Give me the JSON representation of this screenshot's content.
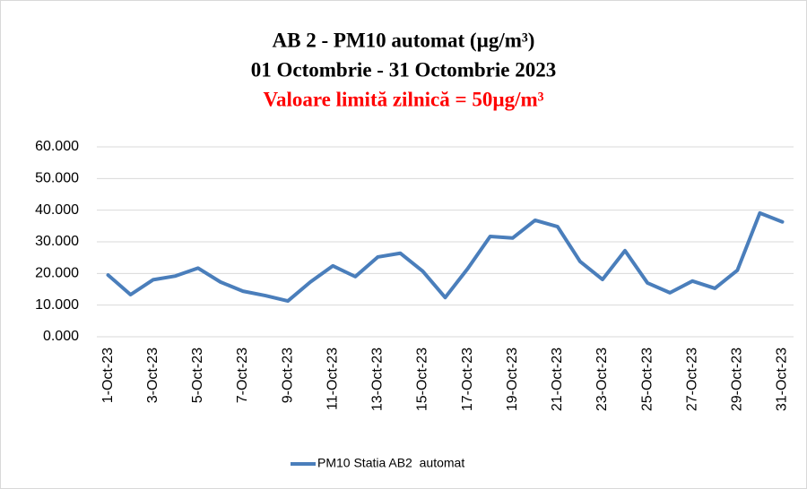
{
  "chart_data": {
    "type": "line",
    "title": [
      "AB 2 - PM10 automat  (µg/m³)",
      "01 Octombrie  - 31 Octombrie   2023"
    ],
    "subtitle": "Valoare limită zilnică = 50µg/m³",
    "categories": [
      "1-Oct-23",
      null,
      "3-Oct-23",
      null,
      "5-Oct-23",
      null,
      "7-Oct-23",
      null,
      "9-Oct-23",
      null,
      "11-Oct-23",
      null,
      "13-Oct-23",
      null,
      "15-Oct-23",
      null,
      "17-Oct-23",
      null,
      "19-Oct-23",
      null,
      "21-Oct-23",
      null,
      "23-Oct-23",
      null,
      "25-Oct-23",
      null,
      "27-Oct-23",
      null,
      "29-Oct-23",
      null,
      "31-Oct-23"
    ],
    "series": [
      {
        "name": "PM10 Statia AB2  automat",
        "color": "#4a7ebb",
        "values": [
          19.5,
          13.3,
          18,
          19.2,
          21.7,
          17.3,
          14.4,
          13,
          11.3,
          17.3,
          22.4,
          19,
          25.2,
          26.4,
          20.7,
          12.4,
          21.5,
          31.7,
          31.2,
          36.8,
          34.8,
          23.8,
          18.1,
          27.2,
          17,
          13.9,
          17.6,
          15.3,
          21,
          39.1,
          36.3
        ]
      }
    ],
    "ylim": [
      0,
      60
    ],
    "yticks": [
      {
        "value": 0,
        "label": "0.000"
      },
      {
        "value": 10,
        "label": "10.000"
      },
      {
        "value": 20,
        "label": "20.000"
      },
      {
        "value": 30,
        "label": "30.000"
      },
      {
        "value": 40,
        "label": "40.000"
      },
      {
        "value": 50,
        "label": "50.000"
      },
      {
        "value": 60,
        "label": "60.000"
      }
    ],
    "grid": true,
    "legend": "bottom"
  }
}
